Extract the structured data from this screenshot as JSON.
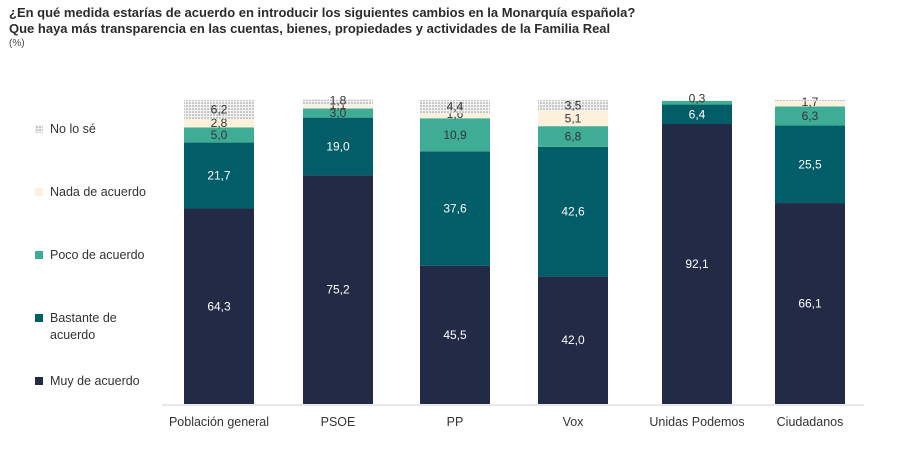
{
  "header": {
    "title_line1": "¿En qué medida estarías de acuerdo en introducir los siguientes cambios en la Monarquía española?",
    "title_line2": "Que haya más transparencia en las cuentas, bienes, propiedades y actividades de la Familia Real",
    "unit": "(%)"
  },
  "chart_data": {
    "type": "bar",
    "stacked": true,
    "title": "¿En qué medida estarías de acuerdo en introducir los siguientes cambios en la Monarquía española? Que haya más transparencia en las cuentas, bienes, propiedades y actividades de la Familia Real",
    "unit": "(%)",
    "categories": [
      "Población general",
      "PSOE",
      "PP",
      "Vox",
      "Unidas Podemos",
      "Ciudadanos"
    ],
    "ylim": [
      0,
      100
    ],
    "grid": false,
    "legend_position": "left",
    "series": [
      {
        "name": "Muy de acuerdo",
        "color": "#222a45",
        "label_color": "#ffffff",
        "pattern": false,
        "values": [
          64.3,
          75.2,
          45.5,
          42.0,
          92.1,
          66.1
        ],
        "labels": [
          "64,3",
          "75,2",
          "45,5",
          "42,0",
          "92,1",
          "66,1"
        ]
      },
      {
        "name": "Bastante de acuerdo",
        "color": "#015e68",
        "label_color": "#ffffff",
        "pattern": false,
        "values": [
          21.7,
          19.0,
          37.6,
          42.6,
          6.4,
          25.5
        ],
        "labels": [
          "21,7",
          "19,0",
          "37,6",
          "42,6",
          "6,4",
          "25,5"
        ]
      },
      {
        "name": "Poco de acuerdo",
        "color": "#3fad96",
        "label_color": "#333333",
        "pattern": false,
        "values": [
          5.0,
          3.0,
          10.9,
          6.8,
          1.2,
          6.3
        ],
        "labels": [
          "5,0",
          "3,0",
          "10,9",
          "6,8",
          "",
          "6,3"
        ]
      },
      {
        "name": "Nada de acuerdo",
        "color": "#fdf1dc",
        "label_color": "#333333",
        "pattern": false,
        "values": [
          2.8,
          1.1,
          1.6,
          5.1,
          0.3,
          1.7
        ],
        "labels": [
          "2,8",
          "1,1",
          "1,6",
          "5,1",
          "0,3",
          "1,7"
        ]
      },
      {
        "name": "No lo sé",
        "color": "#d0d0d0",
        "label_color": "#333333",
        "pattern": true,
        "values": [
          6.2,
          1.8,
          4.4,
          3.5,
          0.0,
          0.4
        ],
        "labels": [
          "6,2",
          "1,8",
          "4,4",
          "3,5",
          "",
          ""
        ]
      }
    ]
  }
}
